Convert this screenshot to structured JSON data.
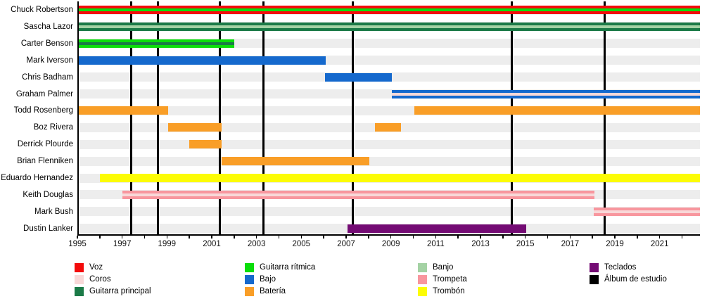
{
  "chart_data": {
    "type": "bar",
    "variant": "band-membership-timeline",
    "title": "",
    "x": {
      "min": 1995,
      "max": 2022.8,
      "tick_every_years": 1,
      "label_every_years": 2,
      "tick_labels": [
        "1995",
        "1997",
        "1999",
        "2001",
        "2003",
        "2005",
        "2007",
        "2009",
        "2011",
        "2013",
        "2015",
        "2017",
        "2019",
        "2021"
      ]
    },
    "roles": {
      "voz": {
        "label": "Voz",
        "color": "#f30b0b"
      },
      "coros": {
        "label": "Coros",
        "color": "#f8d8d8"
      },
      "guitarra_principal": {
        "label": "Guitarra principal",
        "color": "#1b7a47"
      },
      "guitarra_ritmica": {
        "label": "Guitarra rítmica",
        "color": "#0ade0a"
      },
      "bajo": {
        "label": "Bajo",
        "color": "#1569cd"
      },
      "bateria": {
        "label": "Batería",
        "color": "#f99e27"
      },
      "banjo": {
        "label": "Banjo",
        "color": "#a4d2a4"
      },
      "trompeta": {
        "label": "Trompeta",
        "color": "#f8969e"
      },
      "trombon": {
        "label": "Trombón",
        "color": "#fcfc05"
      },
      "teclados": {
        "label": "Teclados",
        "color": "#740b74"
      },
      "album": {
        "label": "Álbum de estudio",
        "color": "#000000"
      }
    },
    "members": [
      {
        "name": "Chuck Robertson",
        "segments": [
          {
            "from": 1995,
            "to": "present",
            "role": "voz",
            "stripe": "guitarra_ritmica"
          }
        ]
      },
      {
        "name": "Sascha Lazor",
        "segments": [
          {
            "from": 1995,
            "to": "present",
            "role": "guitarra_principal",
            "stripe": "banjo"
          }
        ]
      },
      {
        "name": "Carter Benson",
        "segments": [
          {
            "from": 1995,
            "to": 2002,
            "role": "guitarra_ritmica",
            "stripe": "guitarra_principal"
          }
        ]
      },
      {
        "name": "Mark Iverson",
        "segments": [
          {
            "from": 1995,
            "to": 2006.1,
            "role": "bajo"
          }
        ]
      },
      {
        "name": "Chris Badham",
        "segments": [
          {
            "from": 2006.05,
            "to": 2009.05,
            "role": "bajo"
          }
        ]
      },
      {
        "name": "Graham Palmer",
        "segments": [
          {
            "from": 2009.05,
            "to": "present",
            "role": "bajo",
            "stripe": "coros"
          }
        ]
      },
      {
        "name": "Todd Rosenberg",
        "segments": [
          {
            "from": 1995,
            "to": 1999.05,
            "role": "bateria"
          },
          {
            "from": 2010.05,
            "to": "present",
            "role": "bateria"
          }
        ]
      },
      {
        "name": "Boz Rivera",
        "segments": [
          {
            "from": 1999.05,
            "to": 2001.45,
            "role": "bateria"
          },
          {
            "from": 2008.3,
            "to": 2009.45,
            "role": "bateria"
          }
        ]
      },
      {
        "name": "Derrick Plourde",
        "segments": [
          {
            "from": 2000.0,
            "to": 2001.45,
            "role": "bateria"
          }
        ]
      },
      {
        "name": "Brian Flenniken",
        "segments": [
          {
            "from": 2001.45,
            "to": 2008.05,
            "role": "bateria"
          }
        ]
      },
      {
        "name": "Eduardo Hernandez",
        "segments": [
          {
            "from": 1996.0,
            "to": "present",
            "role": "trombon"
          }
        ]
      },
      {
        "name": "Keith Douglas",
        "segments": [
          {
            "from": 1997.0,
            "to": 2018.1,
            "role": "trompeta",
            "stripe": "coros"
          }
        ]
      },
      {
        "name": "Mark Bush",
        "segments": [
          {
            "from": 2018.05,
            "to": "present",
            "role": "trompeta",
            "stripe": "coros"
          }
        ]
      },
      {
        "name": "Dustin Lanker",
        "segments": [
          {
            "from": 2007.05,
            "to": 2015.05,
            "role": "teclados"
          }
        ]
      }
    ],
    "album_release_years": [
      1997.4,
      1998.6,
      2001.35,
      2003.3,
      2007.3,
      2014.4,
      2018.55
    ],
    "legend_columns": [
      [
        "voz",
        "coros",
        "guitarra_principal"
      ],
      [
        "guitarra_ritmica",
        "bajo",
        "bateria"
      ],
      [
        "banjo",
        "trompeta",
        "trombon"
      ],
      [
        "teclados",
        "album"
      ]
    ]
  }
}
